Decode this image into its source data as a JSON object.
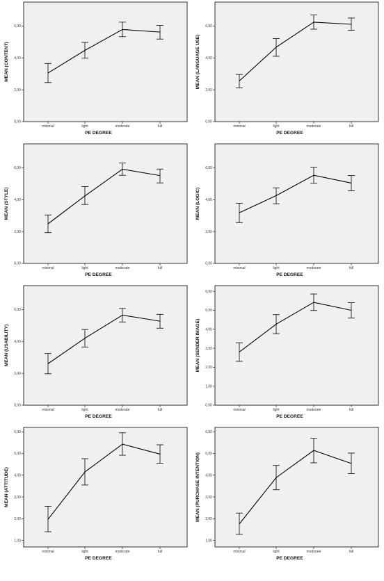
{
  "chart_data": [
    {
      "type": "line",
      "xlabel": "PE DEGREE",
      "ylabel": "MEAN (CONTENT)",
      "categories": [
        "minimal",
        "light",
        "moderate",
        "full"
      ],
      "values": [
        3.05,
        4.47,
        5.78,
        5.62
      ],
      "error_low": [
        2.45,
        3.98,
        5.33,
        5.18
      ],
      "error_high": [
        3.65,
        4.97,
        6.24,
        6.04
      ],
      "ylim": [
        0,
        7.5
      ],
      "yticks": [
        0,
        2,
        4,
        6
      ],
      "ytick_labels": [
        "0,00",
        "2,00",
        "4,00",
        "6,00"
      ],
      "grid": false
    },
    {
      "type": "line",
      "xlabel": "PE DEGREE",
      "ylabel": "MEAN (LANGUAGE USE)",
      "categories": [
        "minimal",
        "light",
        "moderate",
        "full"
      ],
      "values": [
        2.55,
        4.67,
        6.24,
        6.11
      ],
      "error_low": [
        2.12,
        4.1,
        5.8,
        5.73
      ],
      "error_high": [
        2.96,
        5.21,
        6.69,
        6.5
      ],
      "ylim": [
        0,
        7.5
      ],
      "yticks": [
        0,
        2,
        4,
        6
      ],
      "ytick_labels": [
        "0,00",
        "2,00",
        "4,00",
        "6,00"
      ],
      "grid": false
    },
    {
      "type": "line",
      "xlabel": "PE DEGREE",
      "ylabel": "MEAN (STYLE)",
      "categories": [
        "minimal",
        "light",
        "moderate",
        "full"
      ],
      "values": [
        2.48,
        4.23,
        5.91,
        5.51
      ],
      "error_low": [
        1.93,
        3.7,
        5.53,
        5.05
      ],
      "error_high": [
        3.04,
        4.82,
        6.3,
        5.92
      ],
      "ylim": [
        0,
        7.5
      ],
      "yticks": [
        0,
        2,
        4,
        6
      ],
      "ytick_labels": [
        "0,00",
        "2,00",
        "4,00",
        "6,00"
      ],
      "grid": false
    },
    {
      "type": "line",
      "xlabel": "PE DEGREE",
      "ylabel": "MEAN (LOGIC)",
      "categories": [
        "minimal",
        "light",
        "moderate",
        "full"
      ],
      "values": [
        3.18,
        4.25,
        5.53,
        5.04
      ],
      "error_low": [
        2.56,
        3.74,
        5.03,
        4.55
      ],
      "error_high": [
        3.78,
        4.74,
        6.03,
        5.51
      ],
      "ylim": [
        0,
        7.5
      ],
      "yticks": [
        0,
        2,
        4,
        6
      ],
      "ytick_labels": [
        "0,00",
        "2,00",
        "4,00",
        "6,00"
      ],
      "grid": false
    },
    {
      "type": "line",
      "xlabel": "PE DEGREE",
      "ylabel": "MEAN (USABILITY)",
      "categories": [
        "minimal",
        "light",
        "moderate",
        "full"
      ],
      "values": [
        2.6,
        4.2,
        5.65,
        5.27
      ],
      "error_low": [
        1.97,
        3.65,
        5.22,
        4.83
      ],
      "error_high": [
        3.24,
        4.75,
        6.07,
        5.7
      ],
      "ylim": [
        0,
        7.5
      ],
      "yticks": [
        0,
        2,
        4,
        6
      ],
      "ytick_labels": [
        "0,00",
        "2,00",
        "4,00",
        "6,00"
      ],
      "grid": false
    },
    {
      "type": "line",
      "xlabel": "PE DEGREE",
      "ylabel": "MEAN (SENDER IMAGE)",
      "categories": [
        "minimal",
        "light",
        "moderate",
        "full"
      ],
      "values": [
        2.8,
        4.27,
        5.42,
        5.0
      ],
      "error_low": [
        2.31,
        3.77,
        4.99,
        4.59
      ],
      "error_high": [
        3.29,
        4.77,
        5.86,
        5.4
      ],
      "ylim": [
        0,
        6.3
      ],
      "yticks": [
        0,
        1,
        2,
        3,
        4,
        5,
        6
      ],
      "ytick_labels": [
        "0,00",
        "1,00",
        "2,00",
        "3,00",
        "4,00",
        "5,00",
        "6,00"
      ],
      "grid": false
    },
    {
      "type": "line",
      "xlabel": "PE DEGREE",
      "ylabel": "MEAN (ATTITUDE)",
      "categories": [
        "minimal",
        "light",
        "moderate",
        "full"
      ],
      "values": [
        1.97,
        4.15,
        5.43,
        4.97
      ],
      "error_low": [
        1.4,
        3.55,
        4.92,
        4.55
      ],
      "error_high": [
        2.57,
        4.76,
        5.95,
        5.4
      ],
      "ylim": [
        0.7,
        6.2
      ],
      "yticks": [
        1,
        2,
        3,
        4,
        5,
        6
      ],
      "ytick_labels": [
        "1,00",
        "2,00",
        "3,00",
        "4,00",
        "5,00",
        "6,00"
      ],
      "grid": false
    },
    {
      "type": "line",
      "xlabel": "PE DEGREE",
      "ylabel": "MEAN (PURCHASE INTENTION)",
      "categories": [
        "minimal",
        "light",
        "moderate",
        "full"
      ],
      "values": [
        1.76,
        3.89,
        5.14,
        4.54
      ],
      "error_low": [
        1.28,
        3.33,
        4.57,
        4.07
      ],
      "error_high": [
        2.26,
        4.45,
        5.7,
        5.02
      ],
      "ylim": [
        0.7,
        6.2
      ],
      "yticks": [
        1,
        2,
        3,
        4,
        5,
        6
      ],
      "ytick_labels": [
        "1,00",
        "2,00",
        "3,00",
        "4,00",
        "5,00",
        "6,00"
      ],
      "grid": false
    }
  ],
  "colors": {
    "plot_background": "#f0f0f0",
    "line": "#000000",
    "frame": "#000000"
  }
}
